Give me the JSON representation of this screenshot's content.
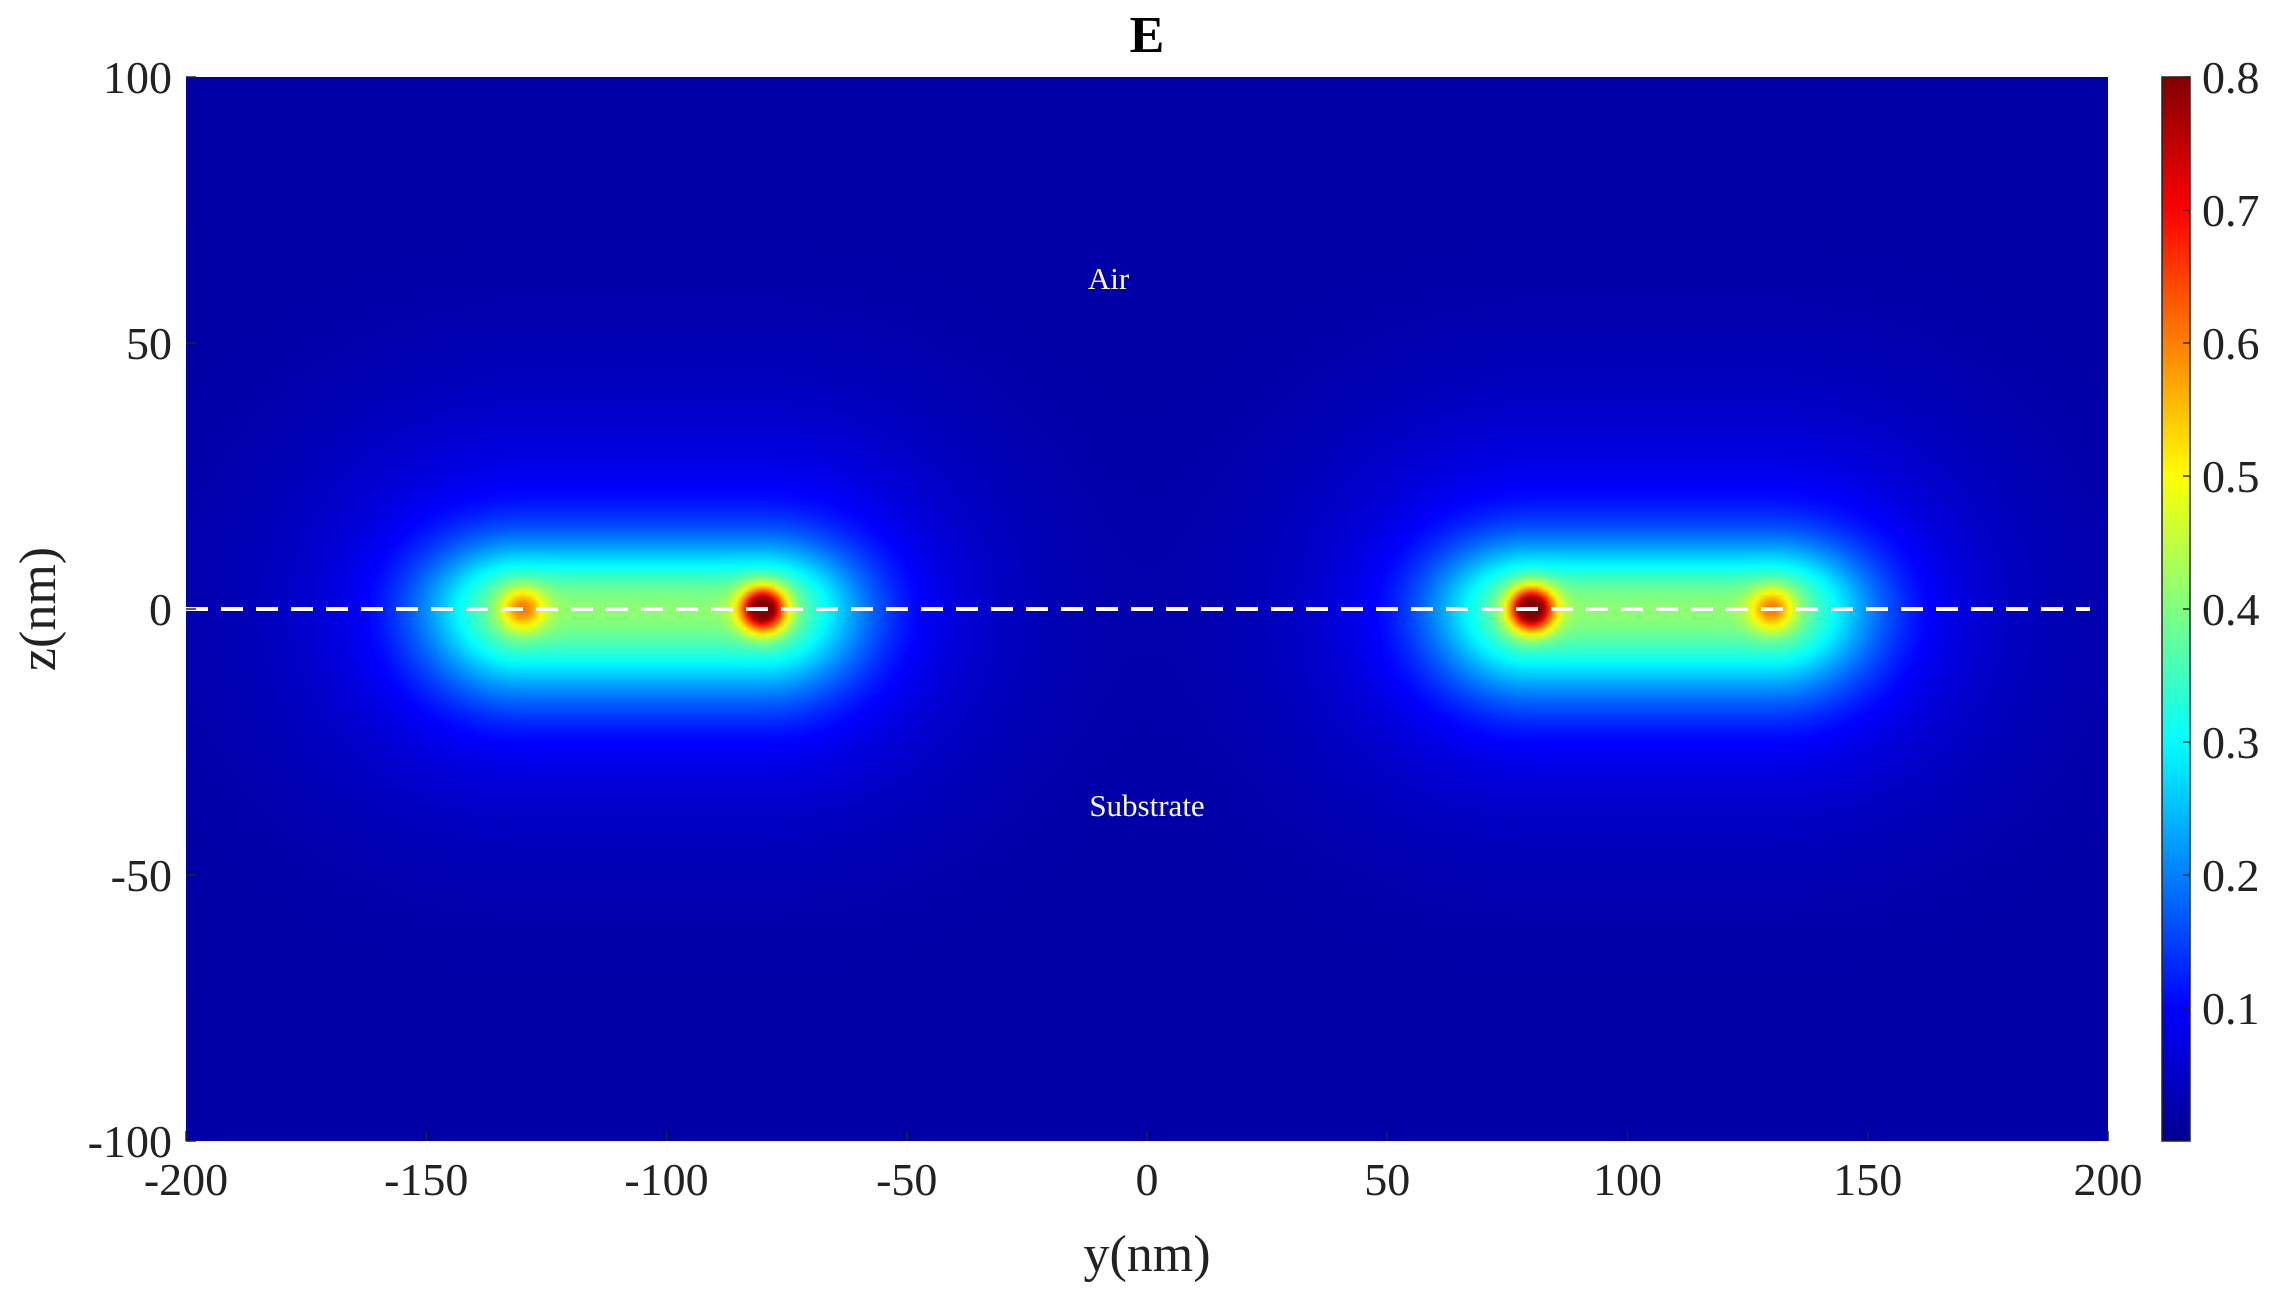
{
  "chart_data": {
    "type": "heatmap",
    "title": "E",
    "xlabel": "y(nm)",
    "ylabel": "z(nm)",
    "xlim": [
      -200,
      200
    ],
    "ylim": [
      -100,
      100
    ],
    "xticks": [
      -200,
      -150,
      -100,
      -50,
      0,
      50,
      100,
      150,
      200
    ],
    "yticks": [
      -100,
      -50,
      0,
      50,
      100
    ],
    "colorbar": {
      "colormap": "jet",
      "range": [
        0,
        0.8
      ],
      "ticks": [
        0.1,
        0.2,
        0.3,
        0.4,
        0.5,
        0.6,
        0.7,
        0.8
      ]
    },
    "hotspots": [
      {
        "y": -130,
        "z": 0,
        "value": 0.5
      },
      {
        "y": -80,
        "z": 0,
        "value": 0.8
      },
      {
        "y": 80,
        "z": 0,
        "value": 0.8
      },
      {
        "y": 130,
        "z": 0,
        "value": 0.5
      }
    ],
    "background_value": 0.02,
    "interface_line": {
      "z": 0,
      "style": "dashed",
      "color": "#ffffff"
    },
    "annotations": [
      {
        "text": "Air",
        "y": -8,
        "z": 62
      },
      {
        "text": "Substrate",
        "y": 0,
        "z": -37
      }
    ]
  }
}
